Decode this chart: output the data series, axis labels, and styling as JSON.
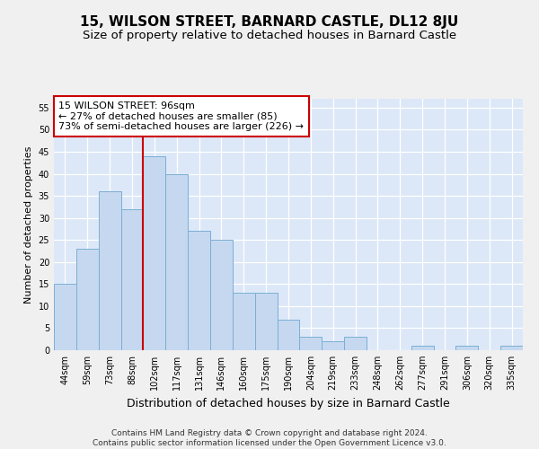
{
  "title": "15, WILSON STREET, BARNARD CASTLE, DL12 8JU",
  "subtitle": "Size of property relative to detached houses in Barnard Castle",
  "xlabel": "Distribution of detached houses by size in Barnard Castle",
  "ylabel": "Number of detached properties",
  "footer_line1": "Contains HM Land Registry data © Crown copyright and database right 2024.",
  "footer_line2": "Contains public sector information licensed under the Open Government Licence v3.0.",
  "categories": [
    "44sqm",
    "59sqm",
    "73sqm",
    "88sqm",
    "102sqm",
    "117sqm",
    "131sqm",
    "146sqm",
    "160sqm",
    "175sqm",
    "190sqm",
    "204sqm",
    "219sqm",
    "233sqm",
    "248sqm",
    "262sqm",
    "277sqm",
    "291sqm",
    "306sqm",
    "320sqm",
    "335sqm"
  ],
  "values": [
    15,
    23,
    36,
    32,
    44,
    40,
    27,
    25,
    13,
    13,
    7,
    3,
    2,
    3,
    0,
    0,
    1,
    0,
    1,
    0,
    1
  ],
  "bar_color": "#c5d8f0",
  "bar_edge_color": "#7bafd4",
  "background_color": "#dce8f8",
  "grid_color": "#ffffff",
  "vline_color": "#cc0000",
  "vline_x_index": 3.5,
  "annotation_text": "15 WILSON STREET: 96sqm\n← 27% of detached houses are smaller (85)\n73% of semi-detached houses are larger (226) →",
  "annotation_box_facecolor": "#ffffff",
  "annotation_box_edgecolor": "#cc0000",
  "ylim": [
    0,
    57
  ],
  "yticks": [
    0,
    5,
    10,
    15,
    20,
    25,
    30,
    35,
    40,
    45,
    50,
    55
  ],
  "title_fontsize": 11,
  "subtitle_fontsize": 9.5,
  "xlabel_fontsize": 9,
  "ylabel_fontsize": 8,
  "tick_fontsize": 7,
  "annotation_fontsize": 8,
  "footer_fontsize": 6.5,
  "fig_facecolor": "#f0f0f0"
}
